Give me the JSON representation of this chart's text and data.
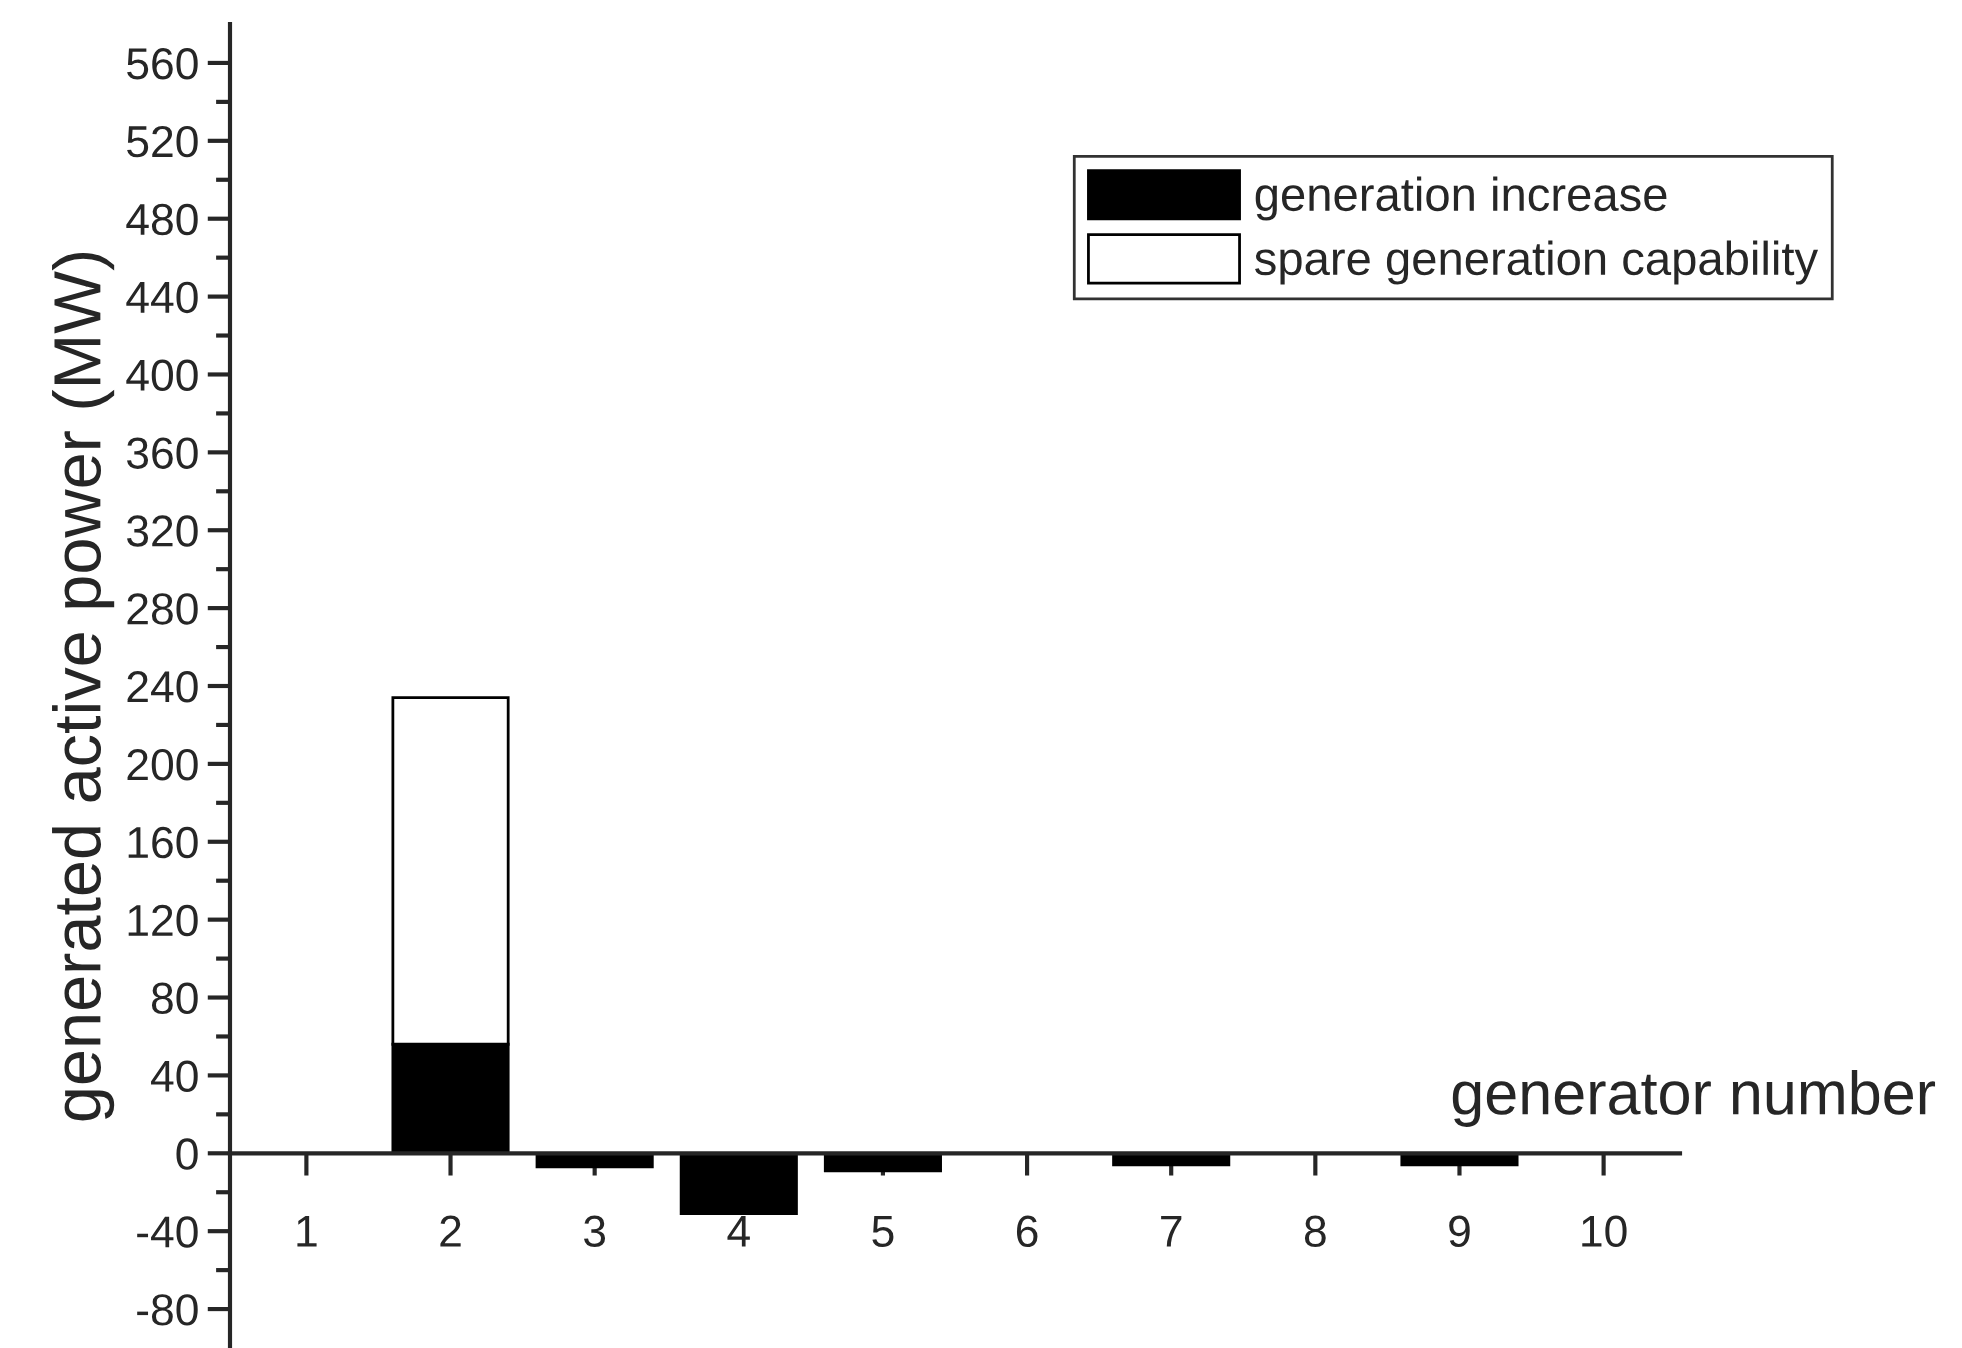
{
  "chart_data": {
    "type": "bar",
    "stacked": true,
    "xlabel": "generator number",
    "ylabel": "generated active power (MW)",
    "categories": [
      "1",
      "2",
      "3",
      "4",
      "5",
      "6",
      "7",
      "8",
      "9",
      "10"
    ],
    "series": [
      {
        "name": "generation increase",
        "color": "#000000",
        "values": [
          0,
          56,
          -7,
          -31,
          -9,
          0,
          -6,
          0,
          -6,
          0
        ]
      },
      {
        "name": "spare generation capability",
        "color": "#ffffff",
        "values": [
          null,
          178,
          null,
          null,
          null,
          null,
          null,
          null,
          null,
          null
        ]
      }
    ],
    "ylim": [
      -100,
      580
    ],
    "yticks": [
      -80,
      {
        "value": -60,
        "label": null
      },
      -40,
      {
        "value": -20,
        "label": null
      },
      0,
      {
        "value": 20,
        "label": null
      },
      40,
      {
        "value": 60,
        "label": null
      },
      80,
      {
        "value": 100,
        "label": null
      },
      120,
      {
        "value": 140,
        "label": null
      },
      160,
      {
        "value": 180,
        "label": null
      },
      200,
      {
        "value": 220,
        "label": null
      },
      240,
      {
        "value": 260,
        "label": null
      },
      280,
      {
        "value": 300,
        "label": null
      },
      320,
      {
        "value": 340,
        "label": null
      },
      360,
      {
        "value": 380,
        "label": null
      },
      400,
      {
        "value": 420,
        "label": null
      },
      440,
      {
        "value": 460,
        "label": null
      },
      480,
      {
        "value": 500,
        "label": null
      },
      520,
      {
        "value": 540,
        "label": null
      },
      560
    ],
    "legend": "top right",
    "grid": false
  }
}
